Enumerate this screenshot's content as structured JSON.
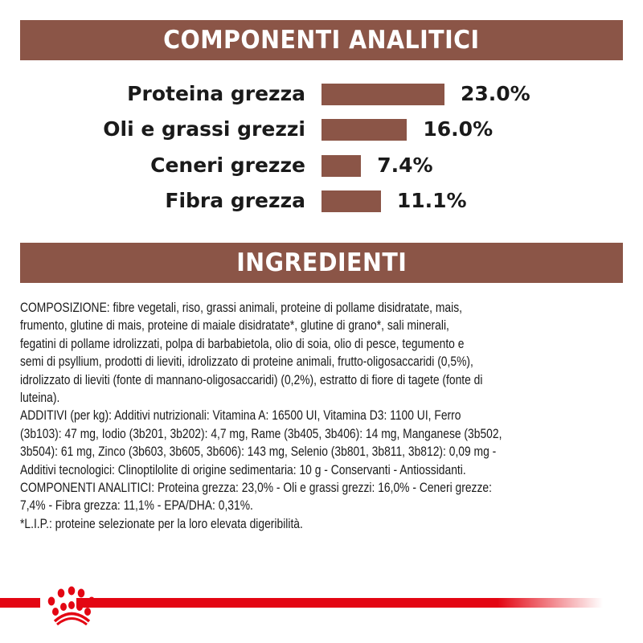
{
  "analytic_header": "COMPONENTI ANALITICI",
  "ingredients_header": "INGREDIENTI",
  "chart_data": {
    "type": "bar",
    "orientation": "horizontal",
    "categories": [
      "Proteina grezza",
      "Oli e grassi grezzi",
      "Ceneri grezze",
      "Fibra grezza"
    ],
    "values": [
      23.0,
      16.0,
      7.4,
      11.1
    ],
    "value_labels": [
      "23.0%",
      "16.0%",
      "7.4%",
      "11.1%"
    ],
    "unit": "%",
    "bar_color": "#8b5547",
    "grid": false
  },
  "ingredients_lines": [
    "COMPOSIZIONE: fibre vegetali, riso, grassi animali, proteine di pollame disidratate, mais,",
    "frumento, glutine di mais, proteine di maiale disidratate*, glutine di grano*, sali minerali,",
    "fegatini di pollame idrolizzati, polpa di barbabietola, olio di soia, olio di pesce, tegumento e",
    "semi di psyllium, prodotti di lieviti, idrolizzato di proteine animali, frutto-oligosaccaridi (0,5%),",
    "idrolizzato di lieviti (fonte di mannano-oligosaccaridi) (0,2%), estratto di fiore di tagete (fonte di",
    "luteina).",
    "ADDITIVI (per kg): Additivi nutrizionali: Vitamina A: 16500 UI, Vitamina D3: 1100 UI, Ferro",
    "(3b103): 47 mg, Iodio (3b201, 3b202): 4,7 mg, Rame (3b405, 3b406): 14 mg, Manganese (3b502,",
    "3b504): 61 mg, Zinco (3b603, 3b605, 3b606): 143 mg, Selenio (3b801, 3b811, 3b812): 0,09 mg -",
    "Additivi tecnologici: Clinoptilolite di origine sedimentaria: 10 g - Conservanti - Antiossidanti.",
    "COMPONENTI ANALITICI: Proteina grezza: 23,0% - Oli e grassi grezzi: 16,0% - Ceneri grezze:",
    "7,4% - Fibra grezza: 11,1% - EPA/DHA: 0,31%.",
    "*L.I.P.: proteine selezionate per la loro elevata digeribilità."
  ],
  "footer": {
    "logo": "royal-canin-crown-logo",
    "accent": "#e30613"
  }
}
